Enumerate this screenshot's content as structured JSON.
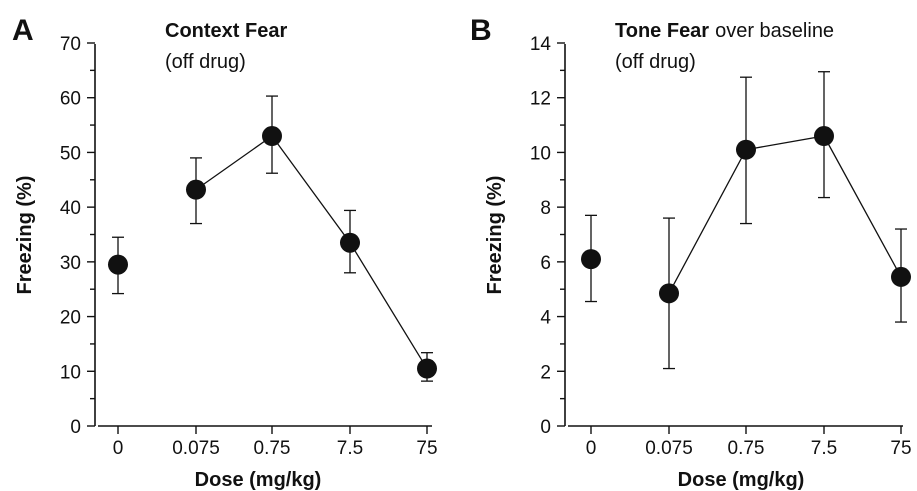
{
  "chart_data": [
    {
      "type": "line",
      "panel_label": "A",
      "title_bold": "Context Fear",
      "title_rest": "",
      "subtitle": "(off drug)",
      "xlabel": "Dose (mg/kg)",
      "ylabel": "Freezing (%)",
      "categories": [
        "0",
        "0.075",
        "0.75",
        "7.5",
        "75"
      ],
      "values": [
        29.5,
        43.2,
        53.0,
        33.5,
        10.5
      ],
      "error_upper": [
        34.5,
        49.0,
        60.3,
        39.4,
        13.4
      ],
      "error_lower": [
        24.2,
        37.0,
        46.2,
        28.0,
        8.2
      ],
      "connected_from_index": 1,
      "ylim": [
        0,
        70
      ],
      "yticks": [
        "0",
        "10",
        "20",
        "30",
        "40",
        "50",
        "60",
        "70"
      ],
      "grid": false,
      "legend": "none",
      "color": "#111111"
    },
    {
      "type": "line",
      "panel_label": "B",
      "title_bold": "Tone Fear",
      "title_rest": "over baseline",
      "subtitle": "(off drug)",
      "xlabel": "Dose (mg/kg)",
      "ylabel": "Freezing (%)",
      "categories": [
        "0",
        "0.075",
        "0.75",
        "7.5",
        "75"
      ],
      "values": [
        6.1,
        4.85,
        10.1,
        10.6,
        5.45
      ],
      "error_upper": [
        7.7,
        7.6,
        12.75,
        12.95,
        7.2
      ],
      "error_lower": [
        4.55,
        2.1,
        7.4,
        8.35,
        3.8
      ],
      "connected_from_index": 1,
      "ylim": [
        0,
        14
      ],
      "yticks": [
        "0",
        "2",
        "4",
        "6",
        "8",
        "10",
        "12",
        "14"
      ],
      "grid": false,
      "legend": "none",
      "color": "#111111"
    }
  ]
}
